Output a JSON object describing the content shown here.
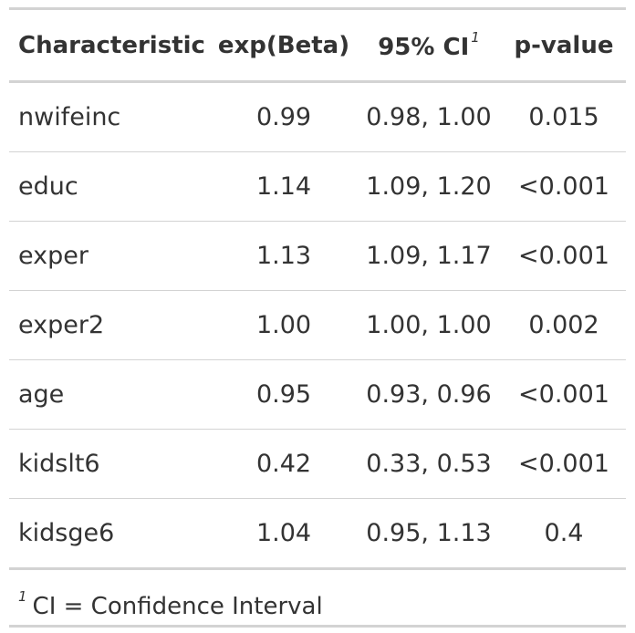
{
  "header": {
    "characteristic": "Characteristic",
    "exp_beta": "exp(Beta)",
    "ci": "95% CI",
    "ci_footnote_mark": "1",
    "p_value": "p-value"
  },
  "rows": [
    {
      "characteristic": "nwifeinc",
      "exp_beta": "0.99",
      "ci": "0.98, 1.00",
      "p_value": "0.015"
    },
    {
      "characteristic": "educ",
      "exp_beta": "1.14",
      "ci": "1.09, 1.20",
      "p_value": "<0.001"
    },
    {
      "characteristic": "exper",
      "exp_beta": "1.13",
      "ci": "1.09, 1.17",
      "p_value": "<0.001"
    },
    {
      "characteristic": "exper2",
      "exp_beta": "1.00",
      "ci": "1.00, 1.00",
      "p_value": "0.002"
    },
    {
      "characteristic": "age",
      "exp_beta": "0.95",
      "ci": "0.93, 0.96",
      "p_value": "<0.001"
    },
    {
      "characteristic": "kidslt6",
      "exp_beta": "0.42",
      "ci": "0.33, 0.53",
      "p_value": "<0.001"
    },
    {
      "characteristic": "kidsge6",
      "exp_beta": "1.04",
      "ci": "0.95, 1.13",
      "p_value": "0.4"
    }
  ],
  "footnote": {
    "mark": "1",
    "text": "CI = Confidence Interval"
  }
}
